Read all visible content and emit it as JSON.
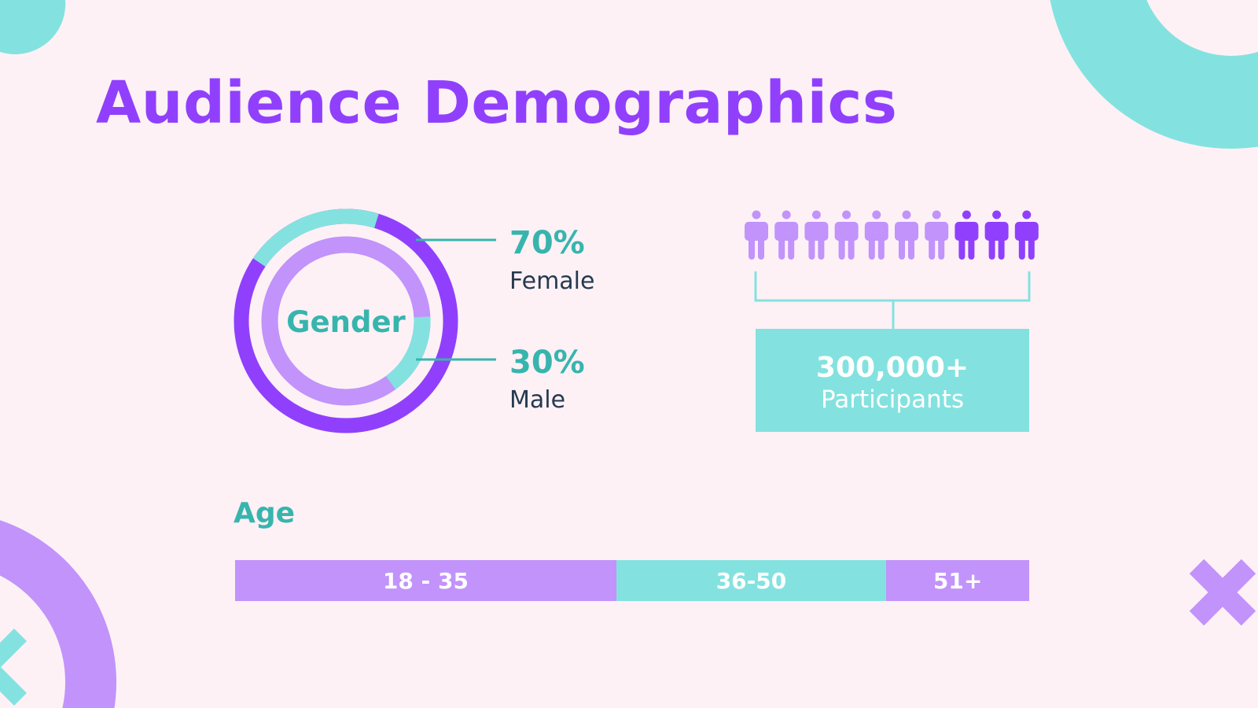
{
  "title": "Audience Demographics",
  "colors": {
    "background": "#fdf1f6",
    "purple": "#9040fc",
    "light_purple": "#c193fb",
    "teal": "#83e2df",
    "teal_text": "#37b5ad",
    "dark_text": "#263a4f"
  },
  "gender": {
    "label": "Gender",
    "female": {
      "percent": "70%",
      "label": "Female"
    },
    "male": {
      "percent": "30%",
      "label": "Male"
    }
  },
  "participants": {
    "count": "300,000+",
    "label": "Participants",
    "icon": "person-icon",
    "people_total": 10,
    "people_highlighted": 3
  },
  "age": {
    "label": "Age",
    "segments": [
      {
        "label": "18 - 35",
        "share": 48,
        "color": "#c193fb"
      },
      {
        "label": "36-50",
        "share": 34,
        "color": "#83e2df"
      },
      {
        "label": "51+",
        "share": 18,
        "color": "#c193fb"
      }
    ]
  }
}
